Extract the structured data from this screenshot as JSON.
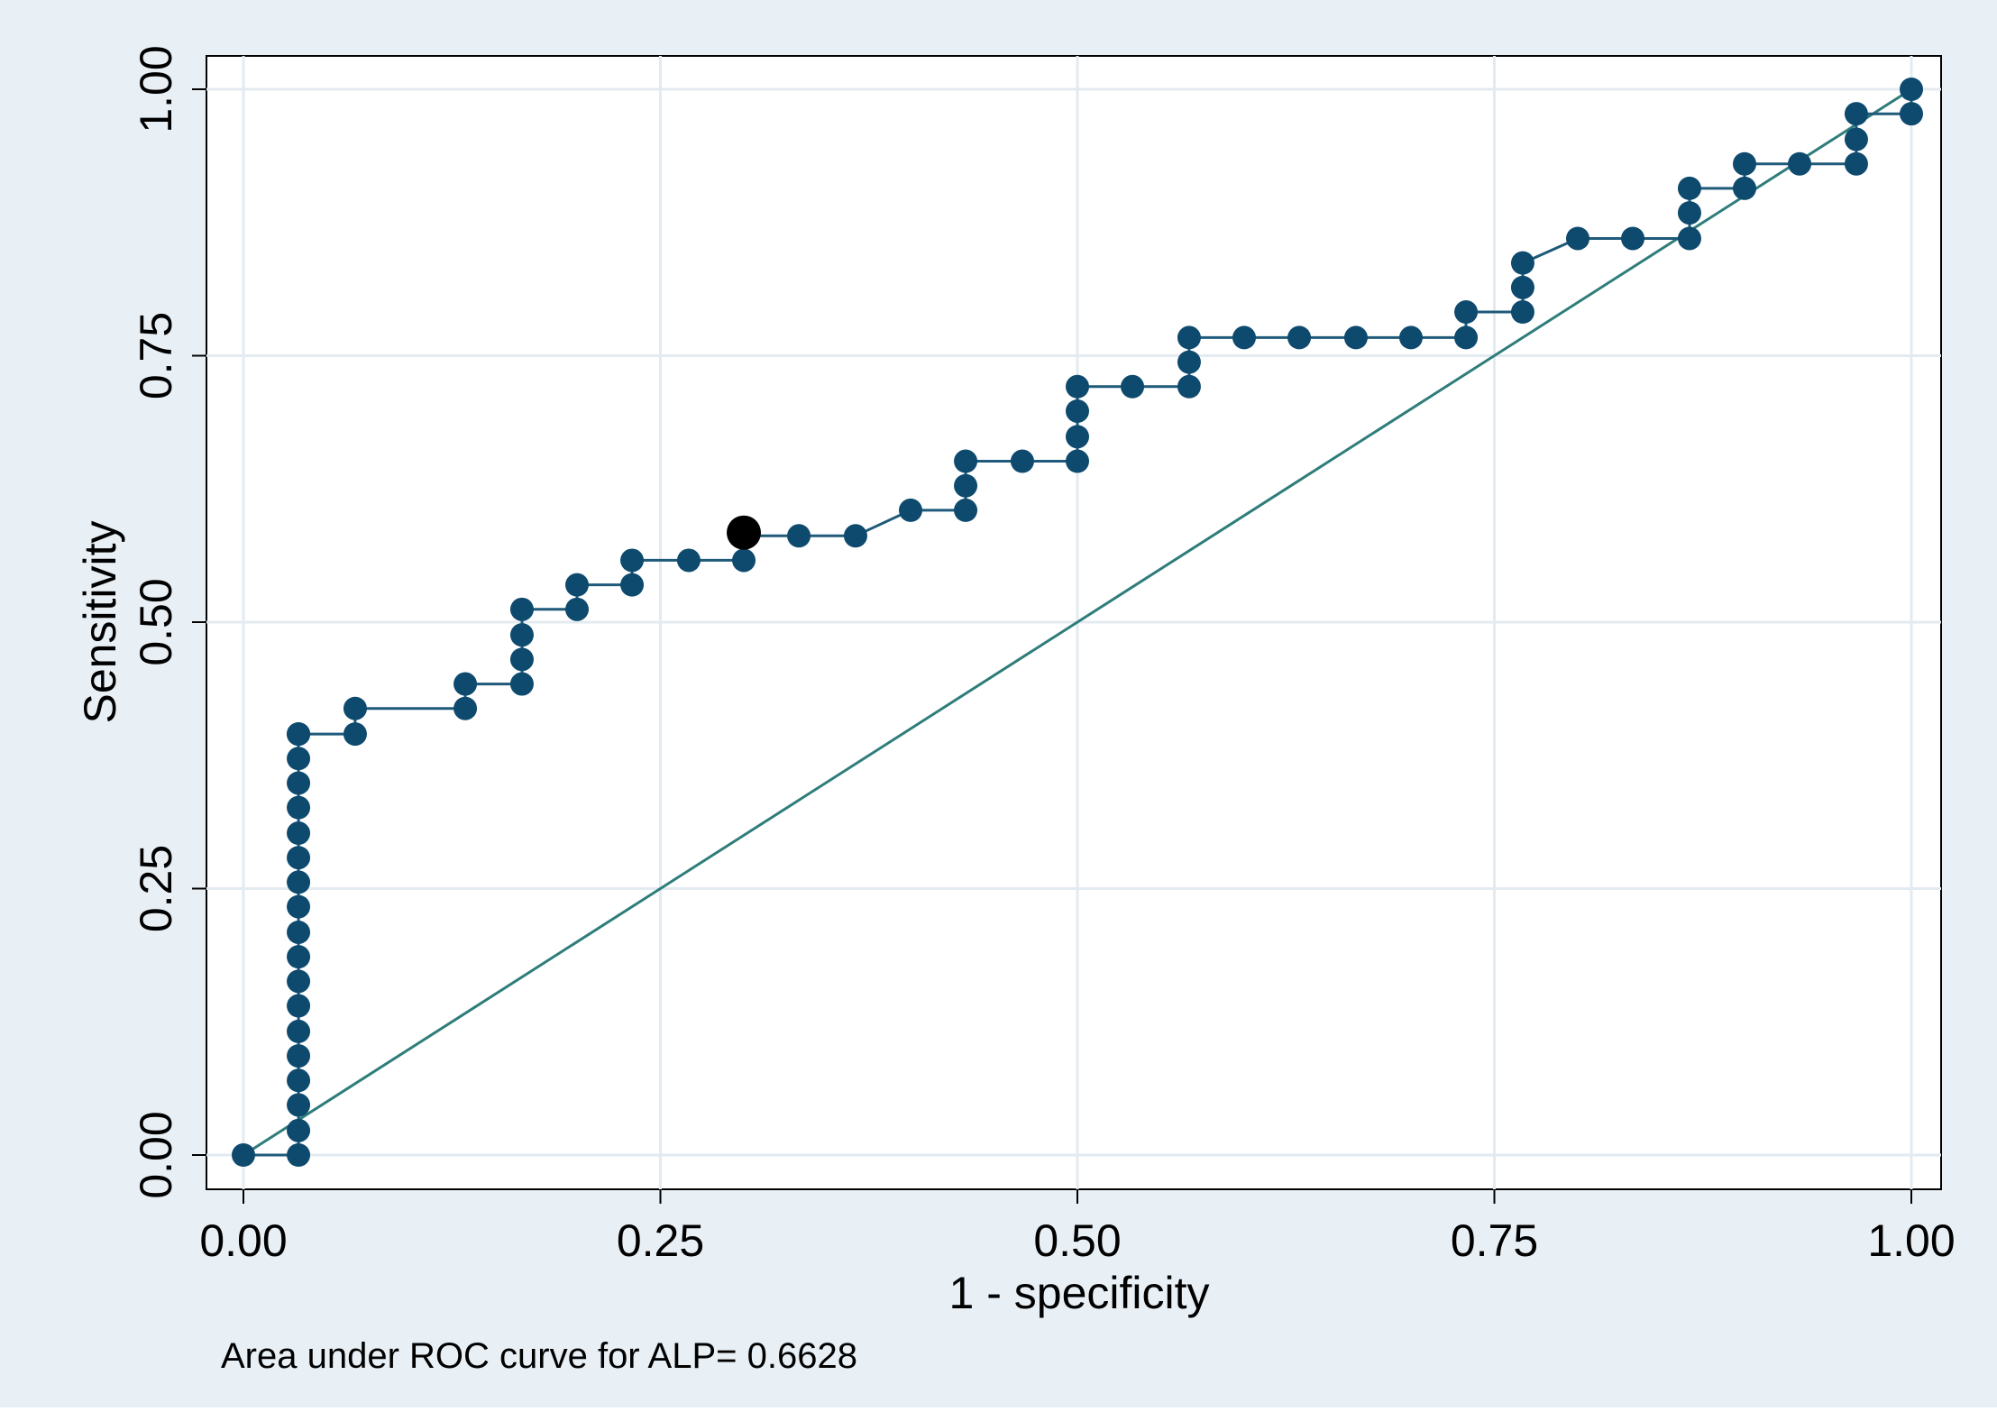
{
  "chart_data": {
    "type": "line",
    "xlabel": "1 - specificity",
    "ylabel": "Sensitivity",
    "note": "Area under ROC curve for ALP= 0.6628",
    "xlim": [
      0,
      1
    ],
    "ylim": [
      0,
      1
    ],
    "x_ticks": [
      "0.00",
      "0.25",
      "0.50",
      "0.75",
      "1.00"
    ],
    "y_ticks": [
      "0.00",
      "0.25",
      "0.50",
      "0.75",
      "1.00"
    ],
    "grid": true,
    "legend": "none",
    "colors": {
      "outer_background": "#e8f0f6",
      "plot_background": "#ffffff",
      "grid": "#e3ebf1",
      "curve": "#1f5a7a",
      "marker": "#0e4a6e",
      "reference_line": "#2e7d7a",
      "optimal_point": "#000000"
    },
    "series": [
      {
        "name": "",
        "kind": "roc-curve",
        "x": [
          0.0,
          0.033,
          0.033,
          0.033,
          0.033,
          0.033,
          0.033,
          0.033,
          0.033,
          0.033,
          0.033,
          0.033,
          0.033,
          0.033,
          0.033,
          0.033,
          0.033,
          0.033,
          0.033,
          0.033,
          0.033,
          0.067,
          0.067,
          0.133,
          0.133,
          0.167,
          0.167,
          0.167,
          0.167,
          0.2,
          0.2,
          0.233,
          0.233,
          0.267,
          0.3,
          0.3,
          0.333,
          0.367,
          0.4,
          0.433,
          0.433,
          0.433,
          0.467,
          0.5,
          0.5,
          0.5,
          0.5,
          0.533,
          0.567,
          0.567,
          0.567,
          0.6,
          0.633,
          0.667,
          0.7,
          0.733,
          0.733,
          0.767,
          0.767,
          0.767,
          0.8,
          0.833,
          0.867,
          0.867,
          0.867,
          0.9,
          0.9,
          0.933,
          0.967,
          0.967,
          0.967,
          1.0,
          1.0
        ],
        "y": [
          0.0,
          0.0,
          0.023,
          0.047,
          0.07,
          0.093,
          0.116,
          0.14,
          0.163,
          0.186,
          0.209,
          0.233,
          0.256,
          0.279,
          0.302,
          0.326,
          0.349,
          0.372,
          0.395,
          0.395,
          0.395,
          0.395,
          0.419,
          0.419,
          0.442,
          0.442,
          0.465,
          0.488,
          0.512,
          0.512,
          0.535,
          0.535,
          0.558,
          0.558,
          0.558,
          0.581,
          0.581,
          0.581,
          0.605,
          0.605,
          0.628,
          0.651,
          0.651,
          0.651,
          0.674,
          0.698,
          0.721,
          0.721,
          0.721,
          0.744,
          0.767,
          0.767,
          0.767,
          0.767,
          0.767,
          0.767,
          0.791,
          0.791,
          0.814,
          0.837,
          0.86,
          0.86,
          0.86,
          0.884,
          0.907,
          0.907,
          0.93,
          0.93,
          0.93,
          0.953,
          0.977,
          0.977,
          1.0
        ]
      },
      {
        "name": "",
        "kind": "reference-line",
        "x": [
          0,
          1
        ],
        "y": [
          0,
          1
        ]
      },
      {
        "name": "",
        "kind": "optimal-point",
        "x": [
          0.3
        ],
        "y": [
          0.584
        ]
      }
    ]
  }
}
